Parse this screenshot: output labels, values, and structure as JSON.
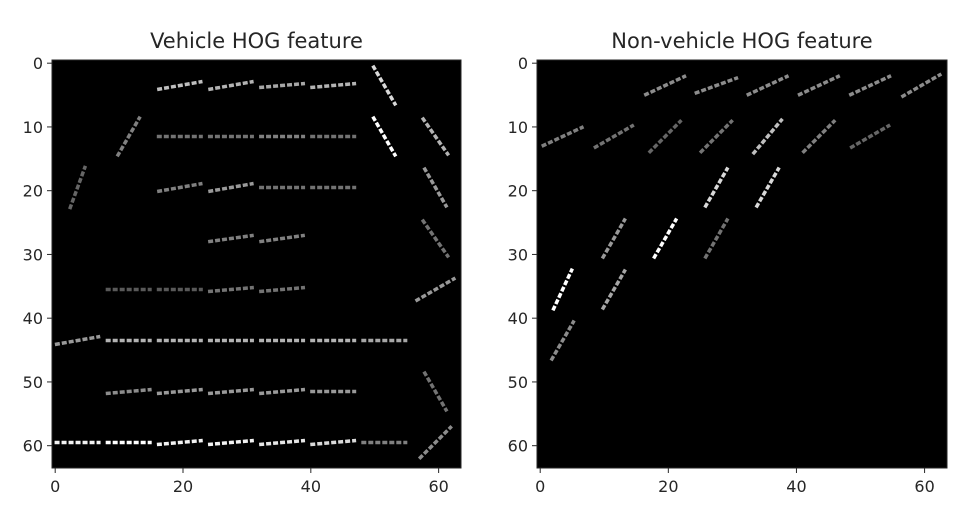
{
  "chart_data": [
    {
      "type": "heatmap",
      "title": "Vehicle HOG feature",
      "xlabel": "",
      "ylabel": "",
      "xlim": [
        -0.5,
        63.5
      ],
      "ylim": [
        63.5,
        -0.5
      ],
      "x_ticks": [
        0,
        20,
        40,
        60
      ],
      "y_ticks": [
        0,
        10,
        20,
        30,
        40,
        50,
        60
      ],
      "colormap": "gray",
      "grid": false,
      "cell_size": 8,
      "segments": [
        {
          "row": 0,
          "col": 2,
          "orientation_deg": 10,
          "intensity": 0.75
        },
        {
          "row": 0,
          "col": 3,
          "orientation_deg": 10,
          "intensity": 0.7
        },
        {
          "row": 0,
          "col": 4,
          "orientation_deg": 5,
          "intensity": 0.65
        },
        {
          "row": 0,
          "col": 5,
          "orientation_deg": 5,
          "intensity": 0.7
        },
        {
          "row": 0,
          "col": 6,
          "orientation_deg": -60,
          "intensity": 0.85
        },
        {
          "row": 1,
          "col": 1,
          "orientation_deg": 60,
          "intensity": 0.5
        },
        {
          "row": 1,
          "col": 2,
          "orientation_deg": 0,
          "intensity": 0.45
        },
        {
          "row": 1,
          "col": 3,
          "orientation_deg": 0,
          "intensity": 0.45
        },
        {
          "row": 1,
          "col": 4,
          "orientation_deg": 0,
          "intensity": 0.5
        },
        {
          "row": 1,
          "col": 5,
          "orientation_deg": 0,
          "intensity": 0.45
        },
        {
          "row": 1,
          "col": 6,
          "orientation_deg": -60,
          "intensity": 1.0
        },
        {
          "row": 1,
          "col": 7,
          "orientation_deg": -55,
          "intensity": 0.7
        },
        {
          "row": 2,
          "col": 0,
          "orientation_deg": 70,
          "intensity": 0.4
        },
        {
          "row": 2,
          "col": 2,
          "orientation_deg": 10,
          "intensity": 0.5
        },
        {
          "row": 2,
          "col": 3,
          "orientation_deg": 10,
          "intensity": 0.6
        },
        {
          "row": 2,
          "col": 4,
          "orientation_deg": 0,
          "intensity": 0.45
        },
        {
          "row": 2,
          "col": 5,
          "orientation_deg": 0,
          "intensity": 0.45
        },
        {
          "row": 2,
          "col": 7,
          "orientation_deg": -60,
          "intensity": 0.6
        },
        {
          "row": 3,
          "col": 3,
          "orientation_deg": 8,
          "intensity": 0.5
        },
        {
          "row": 3,
          "col": 4,
          "orientation_deg": 8,
          "intensity": 0.5
        },
        {
          "row": 3,
          "col": 7,
          "orientation_deg": -55,
          "intensity": 0.45
        },
        {
          "row": 4,
          "col": 1,
          "orientation_deg": 0,
          "intensity": 0.35
        },
        {
          "row": 4,
          "col": 2,
          "orientation_deg": 0,
          "intensity": 0.35
        },
        {
          "row": 4,
          "col": 3,
          "orientation_deg": 5,
          "intensity": 0.45
        },
        {
          "row": 4,
          "col": 4,
          "orientation_deg": 5,
          "intensity": 0.45
        },
        {
          "row": 4,
          "col": 7,
          "orientation_deg": 30,
          "intensity": 0.6
        },
        {
          "row": 5,
          "col": 0,
          "orientation_deg": 10,
          "intensity": 0.6
        },
        {
          "row": 5,
          "col": 1,
          "orientation_deg": 0,
          "intensity": 0.7
        },
        {
          "row": 5,
          "col": 2,
          "orientation_deg": 0,
          "intensity": 0.7
        },
        {
          "row": 5,
          "col": 3,
          "orientation_deg": 0,
          "intensity": 0.7
        },
        {
          "row": 5,
          "col": 4,
          "orientation_deg": 0,
          "intensity": 0.7
        },
        {
          "row": 5,
          "col": 5,
          "orientation_deg": 0,
          "intensity": 0.7
        },
        {
          "row": 5,
          "col": 6,
          "orientation_deg": 0,
          "intensity": 0.65
        },
        {
          "row": 6,
          "col": 1,
          "orientation_deg": 5,
          "intensity": 0.55
        },
        {
          "row": 6,
          "col": 2,
          "orientation_deg": 5,
          "intensity": 0.6
        },
        {
          "row": 6,
          "col": 3,
          "orientation_deg": 5,
          "intensity": 0.6
        },
        {
          "row": 6,
          "col": 4,
          "orientation_deg": 5,
          "intensity": 0.6
        },
        {
          "row": 6,
          "col": 5,
          "orientation_deg": 0,
          "intensity": 0.6
        },
        {
          "row": 6,
          "col": 7,
          "orientation_deg": -60,
          "intensity": 0.45
        },
        {
          "row": 7,
          "col": 0,
          "orientation_deg": 0,
          "intensity": 0.95
        },
        {
          "row": 7,
          "col": 1,
          "orientation_deg": 0,
          "intensity": 1.0
        },
        {
          "row": 7,
          "col": 2,
          "orientation_deg": 5,
          "intensity": 0.95
        },
        {
          "row": 7,
          "col": 3,
          "orientation_deg": 5,
          "intensity": 0.95
        },
        {
          "row": 7,
          "col": 4,
          "orientation_deg": 5,
          "intensity": 0.9
        },
        {
          "row": 7,
          "col": 5,
          "orientation_deg": 5,
          "intensity": 0.85
        },
        {
          "row": 7,
          "col": 6,
          "orientation_deg": 0,
          "intensity": 0.5
        },
        {
          "row": 7,
          "col": 7,
          "orientation_deg": 45,
          "intensity": 0.55
        }
      ]
    },
    {
      "type": "heatmap",
      "title": "Non-vehicle HOG feature",
      "xlabel": "",
      "ylabel": "",
      "xlim": [
        -0.5,
        63.5
      ],
      "ylim": [
        63.5,
        -0.5
      ],
      "x_ticks": [
        0,
        20,
        40,
        60
      ],
      "y_ticks": [
        0,
        10,
        20,
        30,
        40,
        50,
        60
      ],
      "colormap": "gray",
      "grid": false,
      "cell_size": 8,
      "segments": [
        {
          "row": 0,
          "col": 2,
          "orientation_deg": 25,
          "intensity": 0.55
        },
        {
          "row": 0,
          "col": 3,
          "orientation_deg": 20,
          "intensity": 0.55
        },
        {
          "row": 0,
          "col": 4,
          "orientation_deg": 25,
          "intensity": 0.55
        },
        {
          "row": 0,
          "col": 5,
          "orientation_deg": 25,
          "intensity": 0.55
        },
        {
          "row": 0,
          "col": 6,
          "orientation_deg": 25,
          "intensity": 0.55
        },
        {
          "row": 0,
          "col": 7,
          "orientation_deg": 30,
          "intensity": 0.55
        },
        {
          "row": 1,
          "col": 0,
          "orientation_deg": 25,
          "intensity": 0.5
        },
        {
          "row": 1,
          "col": 1,
          "orientation_deg": 30,
          "intensity": 0.45
        },
        {
          "row": 1,
          "col": 2,
          "orientation_deg": 45,
          "intensity": 0.4
        },
        {
          "row": 1,
          "col": 3,
          "orientation_deg": 45,
          "intensity": 0.45
        },
        {
          "row": 1,
          "col": 4,
          "orientation_deg": 50,
          "intensity": 0.75
        },
        {
          "row": 1,
          "col": 5,
          "orientation_deg": 45,
          "intensity": 0.5
        },
        {
          "row": 1,
          "col": 6,
          "orientation_deg": 30,
          "intensity": 0.4
        },
        {
          "row": 2,
          "col": 3,
          "orientation_deg": 60,
          "intensity": 0.85
        },
        {
          "row": 2,
          "col": 4,
          "orientation_deg": 60,
          "intensity": 0.85
        },
        {
          "row": 3,
          "col": 1,
          "orientation_deg": 60,
          "intensity": 0.6
        },
        {
          "row": 3,
          "col": 2,
          "orientation_deg": 60,
          "intensity": 1.0
        },
        {
          "row": 3,
          "col": 3,
          "orientation_deg": 60,
          "intensity": 0.45
        },
        {
          "row": 4,
          "col": 0,
          "orientation_deg": 65,
          "intensity": 1.0
        },
        {
          "row": 4,
          "col": 1,
          "orientation_deg": 60,
          "intensity": 0.65
        },
        {
          "row": 5,
          "col": 0,
          "orientation_deg": 60,
          "intensity": 0.55
        }
      ]
    }
  ]
}
